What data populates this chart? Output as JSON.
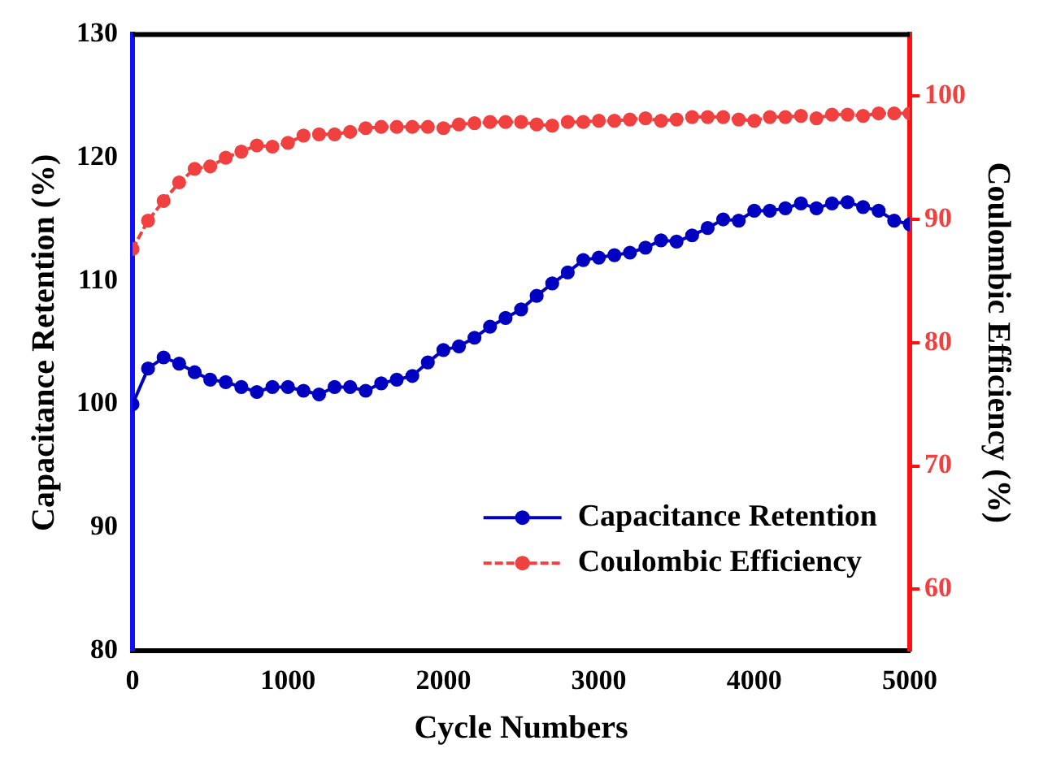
{
  "chart_data": {
    "type": "line",
    "xlabel": "Cycle Numbers",
    "ylabel": "Capacitance Retention (%)",
    "y2label": "Coulombic Efficiency (%)",
    "x": [
      0,
      100,
      200,
      300,
      400,
      500,
      600,
      700,
      800,
      900,
      1000,
      1100,
      1200,
      1300,
      1400,
      1500,
      1600,
      1700,
      1800,
      1900,
      2000,
      2100,
      2200,
      2300,
      2400,
      2500,
      2600,
      2700,
      2800,
      2900,
      3000,
      3100,
      3200,
      3300,
      3400,
      3500,
      3600,
      3700,
      3800,
      3900,
      4000,
      4100,
      4200,
      4300,
      4400,
      4500,
      4600,
      4700,
      4800,
      4900,
      5000
    ],
    "xlim": [
      0,
      5000
    ],
    "xticks": [
      0,
      1000,
      2000,
      3000,
      4000,
      5000
    ],
    "ylim": [
      80,
      130
    ],
    "yticks": [
      80,
      90,
      100,
      110,
      120,
      130
    ],
    "y2lim": [
      55,
      105
    ],
    "y2ticks": [
      60,
      70,
      80,
      90,
      100
    ],
    "marker": "circle",
    "grid": false,
    "legend": "bottom right",
    "series": [
      {
        "name": "Capacitance Retention",
        "color": "#0000c0",
        "line_style": "solid",
        "values": [
          100.0,
          102.9,
          103.8,
          103.3,
          102.6,
          102.0,
          101.8,
          101.4,
          101.0,
          101.4,
          101.4,
          101.1,
          100.8,
          101.4,
          101.4,
          101.1,
          101.7,
          102.0,
          102.3,
          103.4,
          104.4,
          104.7,
          105.4,
          106.3,
          107.0,
          107.7,
          108.8,
          109.8,
          110.7,
          111.7,
          111.9,
          112.1,
          112.3,
          112.7,
          113.3,
          113.2,
          113.7,
          114.3,
          115.0,
          114.9,
          115.7,
          115.7,
          115.9,
          116.3,
          115.9,
          116.3,
          116.4,
          116.0,
          115.7,
          114.9,
          114.6
        ]
      },
      {
        "name": "Coulombic Efficiency",
        "color": "#f04040",
        "axis": "y2",
        "line_style": "dashed",
        "values": [
          87.6,
          89.9,
          91.5,
          93.0,
          94.1,
          94.3,
          95.0,
          95.5,
          96.0,
          95.9,
          96.2,
          96.8,
          96.9,
          96.9,
          97.1,
          97.4,
          97.5,
          97.5,
          97.5,
          97.5,
          97.4,
          97.7,
          97.8,
          97.9,
          97.9,
          97.9,
          97.7,
          97.6,
          97.9,
          97.9,
          98.0,
          98.0,
          98.1,
          98.2,
          98.0,
          98.1,
          98.3,
          98.3,
          98.3,
          98.1,
          98.0,
          98.3,
          98.3,
          98.4,
          98.2,
          98.5,
          98.5,
          98.4,
          98.6,
          98.6,
          98.6
        ]
      }
    ]
  }
}
